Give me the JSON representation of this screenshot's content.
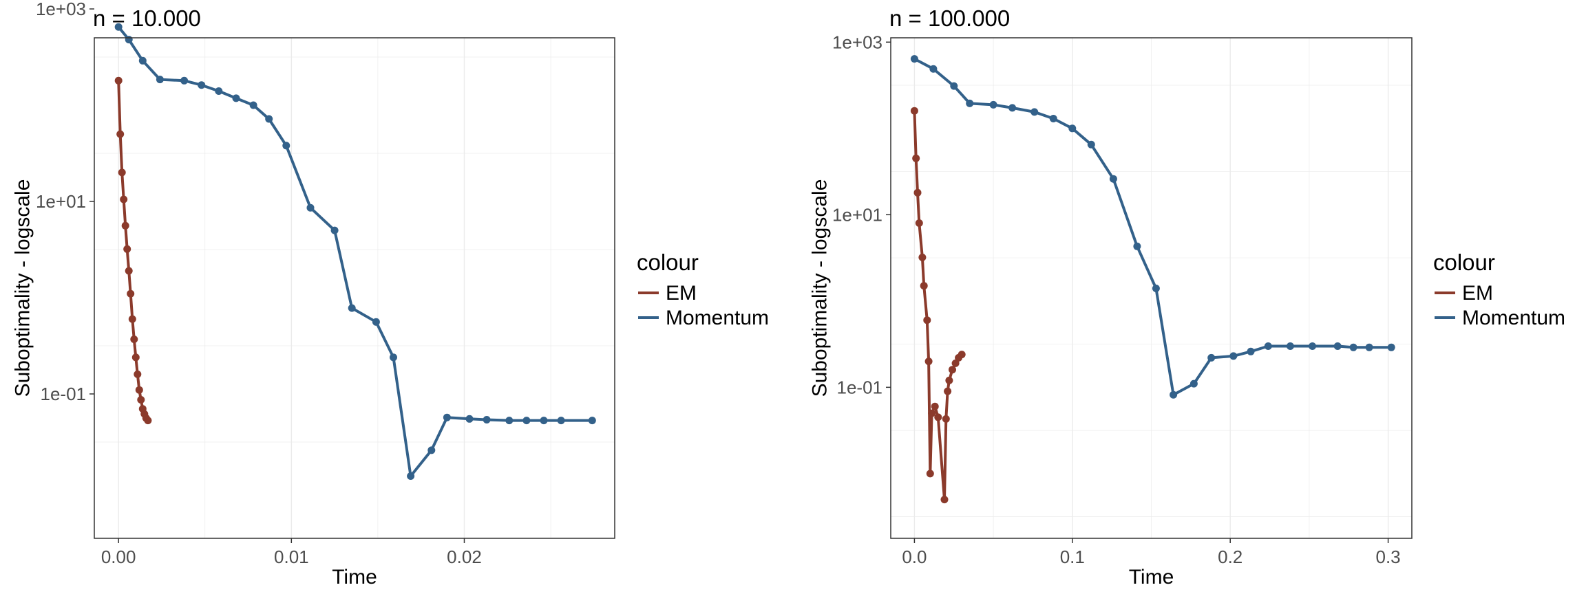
{
  "colors": {
    "em": "#8B3A2B",
    "momentum": "#33618A",
    "grid": "#EBEBEB",
    "axis_text": "#4D4D4D",
    "text": "#000000"
  },
  "chart_data": [
    {
      "type": "line",
      "title": "n = 10.000",
      "xlabel": "Time",
      "ylabel": "Suboptimality - logscale",
      "y_scale": "log10",
      "xlim": [
        -0.0014,
        0.0287
      ],
      "ylim_log10": [
        -2.5,
        2.7
      ],
      "x_ticks": [
        0.0,
        0.01,
        0.02
      ],
      "x_tick_labels": [
        "0.00",
        "0.01",
        "0.02"
      ],
      "y_ticks_log10": [
        -1,
        1,
        3
      ],
      "y_tick_labels": [
        "1e-01",
        "1e+01",
        "1e+03"
      ],
      "grid": true,
      "legend": {
        "title": "colour",
        "position": "right",
        "entries": [
          "EM",
          "Momentum"
        ]
      },
      "series": [
        {
          "name": "EM",
          "color_key": "em",
          "points": [
            [
              0.0,
              180
            ],
            [
              0.0001,
              50
            ],
            [
              0.0002,
              20
            ],
            [
              0.0003,
              10.5
            ],
            [
              0.0004,
              5.6
            ],
            [
              0.0005,
              3.2
            ],
            [
              0.0006,
              1.9
            ],
            [
              0.0007,
              1.1
            ],
            [
              0.0008,
              0.6
            ],
            [
              0.0009,
              0.37
            ],
            [
              0.001,
              0.24
            ],
            [
              0.0011,
              0.16
            ],
            [
              0.0012,
              0.11
            ],
            [
              0.0013,
              0.087
            ],
            [
              0.0014,
              0.07
            ],
            [
              0.0015,
              0.062
            ],
            [
              0.0016,
              0.056
            ],
            [
              0.0017,
              0.053
            ]
          ]
        },
        {
          "name": "Momentum",
          "color_key": "momentum",
          "points": [
            [
              0.0,
              650
            ],
            [
              0.0006,
              480
            ],
            [
              0.0014,
              290
            ],
            [
              0.0024,
              185
            ],
            [
              0.0038,
              180
            ],
            [
              0.0048,
              162
            ],
            [
              0.0058,
              140
            ],
            [
              0.0068,
              118
            ],
            [
              0.0078,
              100
            ],
            [
              0.0087,
              72
            ],
            [
              0.0097,
              38
            ],
            [
              0.0111,
              8.6
            ],
            [
              0.0125,
              5.0
            ],
            [
              0.0135,
              0.78
            ],
            [
              0.0149,
              0.56
            ],
            [
              0.0159,
              0.24
            ],
            [
              0.0169,
              0.014
            ],
            [
              0.0181,
              0.026
            ],
            [
              0.019,
              0.057
            ],
            [
              0.0203,
              0.055
            ],
            [
              0.0213,
              0.054
            ],
            [
              0.0226,
              0.053
            ],
            [
              0.0236,
              0.053
            ],
            [
              0.0246,
              0.053
            ],
            [
              0.0256,
              0.053
            ],
            [
              0.0274,
              0.053
            ]
          ]
        }
      ]
    },
    {
      "type": "line",
      "title": "n = 100.000",
      "xlabel": "Time",
      "ylabel": "Suboptimality - logscale",
      "y_scale": "log10",
      "xlim": [
        -0.015,
        0.315
      ],
      "ylim_log10": [
        -2.75,
        3.05
      ],
      "x_ticks": [
        0.0,
        0.1,
        0.2,
        0.3
      ],
      "x_tick_labels": [
        "0.0",
        "0.1",
        "0.2",
        "0.3"
      ],
      "y_ticks_log10": [
        -1,
        1,
        3
      ],
      "y_tick_labels": [
        "1e-01",
        "1e+01",
        "1e+03"
      ],
      "grid": true,
      "legend": {
        "title": "colour",
        "position": "right",
        "entries": [
          "EM",
          "Momentum"
        ]
      },
      "series": [
        {
          "name": "EM",
          "color_key": "em",
          "points": [
            [
              0.0,
              160
            ],
            [
              0.001,
              45
            ],
            [
              0.002,
              18
            ],
            [
              0.003,
              8.0
            ],
            [
              0.005,
              3.2
            ],
            [
              0.006,
              1.5
            ],
            [
              0.008,
              0.6
            ],
            [
              0.009,
              0.2
            ],
            [
              0.01,
              0.01
            ],
            [
              0.011,
              0.05
            ],
            [
              0.013,
              0.06
            ],
            [
              0.015,
              0.045
            ],
            [
              0.019,
              0.005
            ],
            [
              0.02,
              0.043
            ],
            [
              0.021,
              0.09
            ],
            [
              0.022,
              0.12
            ],
            [
              0.024,
              0.16
            ],
            [
              0.026,
              0.19
            ],
            [
              0.028,
              0.22
            ],
            [
              0.03,
              0.24
            ]
          ]
        },
        {
          "name": "Momentum",
          "color_key": "momentum",
          "points": [
            [
              0.0,
              640
            ],
            [
              0.012,
              490
            ],
            [
              0.025,
              310
            ],
            [
              0.035,
              195
            ],
            [
              0.05,
              188
            ],
            [
              0.062,
              173
            ],
            [
              0.076,
              155
            ],
            [
              0.088,
              130
            ],
            [
              0.1,
              100
            ],
            [
              0.112,
              65
            ],
            [
              0.126,
              26
            ],
            [
              0.141,
              4.3
            ],
            [
              0.153,
              1.4
            ],
            [
              0.164,
              0.082
            ],
            [
              0.177,
              0.11
            ],
            [
              0.188,
              0.22
            ],
            [
              0.202,
              0.23
            ],
            [
              0.213,
              0.26
            ],
            [
              0.224,
              0.3
            ],
            [
              0.238,
              0.3
            ],
            [
              0.252,
              0.3
            ],
            [
              0.268,
              0.3
            ],
            [
              0.278,
              0.29
            ],
            [
              0.288,
              0.29
            ],
            [
              0.302,
              0.29
            ]
          ]
        }
      ]
    }
  ]
}
